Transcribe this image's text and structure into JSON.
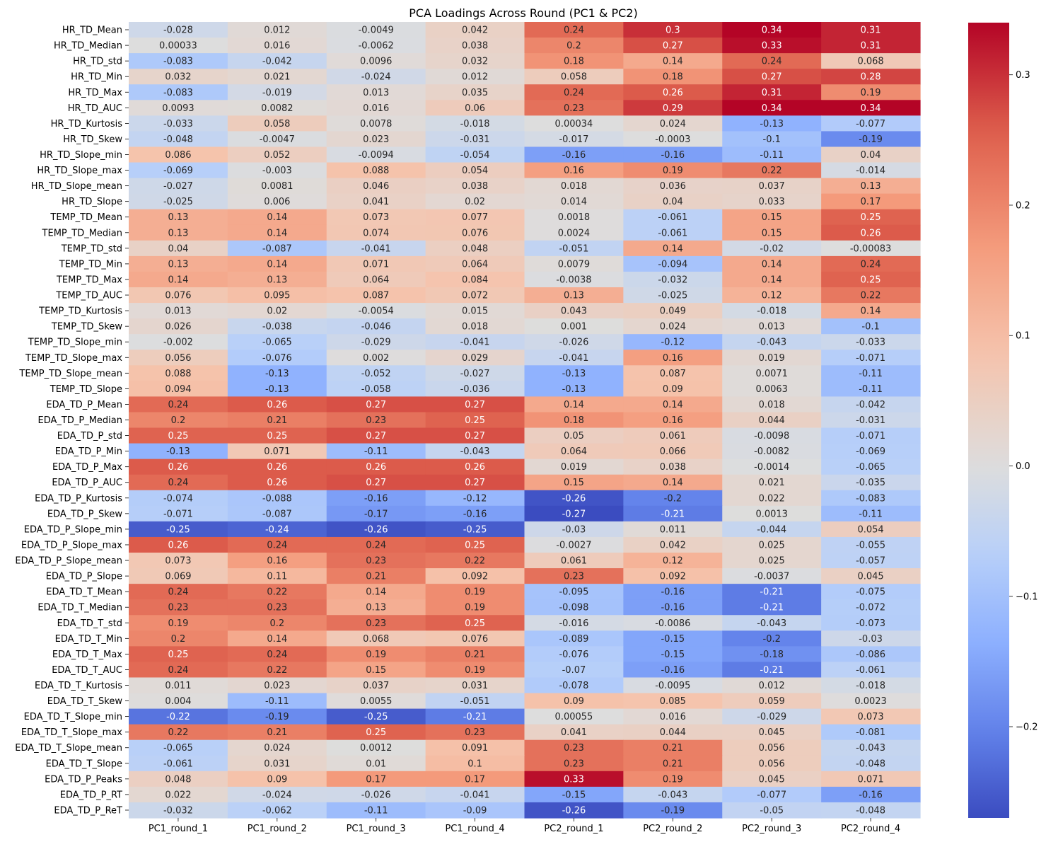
{
  "chart_data": {
    "type": "heatmap",
    "title": "PCA Loadings Across Round (PC1 & PC2)",
    "xlabel": "",
    "ylabel": "",
    "colormap": "coolwarm",
    "vmin": -0.27,
    "vmax": 0.34,
    "colorbar_ticks": [
      "0.3",
      "0.2",
      "0.1",
      "0.0",
      "−0.1",
      "−0.2"
    ],
    "colorbar_tick_values": [
      0.3,
      0.2,
      0.1,
      0.0,
      -0.1,
      -0.2
    ],
    "annotated": true,
    "columns": [
      "PC1_round_1",
      "PC1_round_2",
      "PC1_round_3",
      "PC1_round_4",
      "PC2_round_1",
      "PC2_round_2",
      "PC2_round_3",
      "PC2_round_4"
    ],
    "rows": [
      "HR_TD_Mean",
      "HR_TD_Median",
      "HR_TD_std",
      "HR_TD_Min",
      "HR_TD_Max",
      "HR_TD_AUC",
      "HR_TD_Kurtosis",
      "HR_TD_Skew",
      "HR_TD_Slope_min",
      "HR_TD_Slope_max",
      "HR_TD_Slope_mean",
      "HR_TD_Slope",
      "TEMP_TD_Mean",
      "TEMP_TD_Median",
      "TEMP_TD_std",
      "TEMP_TD_Min",
      "TEMP_TD_Max",
      "TEMP_TD_AUC",
      "TEMP_TD_Kurtosis",
      "TEMP_TD_Skew",
      "TEMP_TD_Slope_min",
      "TEMP_TD_Slope_max",
      "TEMP_TD_Slope_mean",
      "TEMP_TD_Slope",
      "EDA_TD_P_Mean",
      "EDA_TD_P_Median",
      "EDA_TD_P_std",
      "EDA_TD_P_Min",
      "EDA_TD_P_Max",
      "EDA_TD_P_AUC",
      "EDA_TD_P_Kurtosis",
      "EDA_TD_P_Skew",
      "EDA_TD_P_Slope_min",
      "EDA_TD_P_Slope_max",
      "EDA_TD_P_Slope_mean",
      "EDA_TD_P_Slope",
      "EDA_TD_T_Mean",
      "EDA_TD_T_Median",
      "EDA_TD_T_std",
      "EDA_TD_T_Min",
      "EDA_TD_T_Max",
      "EDA_TD_T_AUC",
      "EDA_TD_T_Kurtosis",
      "EDA_TD_T_Skew",
      "EDA_TD_T_Slope_min",
      "EDA_TD_T_Slope_max",
      "EDA_TD_T_Slope_mean",
      "EDA_TD_T_Slope",
      "EDA_TD_P_Peaks",
      "EDA_TD_P_RT",
      "EDA_TD_P_ReT"
    ],
    "values": [
      [
        "-0.028",
        "0.012",
        "-0.0049",
        "0.042",
        "0.24",
        "0.3",
        "0.34",
        "0.31"
      ],
      [
        "0.00033",
        "0.016",
        "-0.0062",
        "0.038",
        "0.2",
        "0.27",
        "0.33",
        "0.31"
      ],
      [
        "-0.083",
        "-0.042",
        "0.0096",
        "0.032",
        "0.18",
        "0.14",
        "0.24",
        "0.068"
      ],
      [
        "0.032",
        "0.021",
        "-0.024",
        "0.012",
        "0.058",
        "0.18",
        "0.27",
        "0.28"
      ],
      [
        "-0.083",
        "-0.019",
        "0.013",
        "0.035",
        "0.24",
        "0.26",
        "0.31",
        "0.19"
      ],
      [
        "0.0093",
        "0.0082",
        "0.016",
        "0.06",
        "0.23",
        "0.29",
        "0.34",
        "0.34"
      ],
      [
        "-0.033",
        "0.058",
        "0.0078",
        "-0.018",
        "0.00034",
        "0.024",
        "-0.13",
        "-0.077"
      ],
      [
        "-0.048",
        "-0.0047",
        "0.023",
        "-0.031",
        "-0.017",
        "-0.0003",
        "-0.1",
        "-0.19"
      ],
      [
        "0.086",
        "0.052",
        "-0.0094",
        "-0.054",
        "-0.16",
        "-0.16",
        "-0.11",
        "0.04"
      ],
      [
        "-0.069",
        "-0.003",
        "0.088",
        "0.054",
        "0.16",
        "0.19",
        "0.22",
        "-0.014"
      ],
      [
        "-0.027",
        "0.0081",
        "0.046",
        "0.038",
        "0.018",
        "0.036",
        "0.037",
        "0.13"
      ],
      [
        "-0.025",
        "0.006",
        "0.041",
        "0.02",
        "0.014",
        "0.04",
        "0.033",
        "0.17"
      ],
      [
        "0.13",
        "0.14",
        "0.073",
        "0.077",
        "0.0018",
        "-0.061",
        "0.15",
        "0.25"
      ],
      [
        "0.13",
        "0.14",
        "0.074",
        "0.076",
        "0.0024",
        "-0.061",
        "0.15",
        "0.26"
      ],
      [
        "0.04",
        "-0.087",
        "-0.041",
        "0.048",
        "-0.051",
        "0.14",
        "-0.02",
        "-0.00083"
      ],
      [
        "0.13",
        "0.14",
        "0.071",
        "0.064",
        "0.0079",
        "-0.094",
        "0.14",
        "0.24"
      ],
      [
        "0.14",
        "0.13",
        "0.064",
        "0.084",
        "-0.0038",
        "-0.032",
        "0.14",
        "0.25"
      ],
      [
        "0.076",
        "0.095",
        "0.087",
        "0.072",
        "0.13",
        "-0.025",
        "0.12",
        "0.22"
      ],
      [
        "0.013",
        "0.02",
        "-0.0054",
        "0.015",
        "0.043",
        "0.049",
        "-0.018",
        "0.14"
      ],
      [
        "0.026",
        "-0.038",
        "-0.046",
        "0.018",
        "0.001",
        "0.024",
        "0.013",
        "-0.1"
      ],
      [
        "-0.002",
        "-0.065",
        "-0.029",
        "-0.041",
        "-0.026",
        "-0.12",
        "-0.043",
        "-0.033"
      ],
      [
        "0.056",
        "-0.076",
        "0.002",
        "0.029",
        "-0.041",
        "0.16",
        "0.019",
        "-0.071"
      ],
      [
        "0.088",
        "-0.13",
        "-0.052",
        "-0.027",
        "-0.13",
        "0.087",
        "0.0071",
        "-0.11"
      ],
      [
        "0.094",
        "-0.13",
        "-0.058",
        "-0.036",
        "-0.13",
        "0.09",
        "0.0063",
        "-0.11"
      ],
      [
        "0.24",
        "0.26",
        "0.27",
        "0.27",
        "0.14",
        "0.14",
        "0.018",
        "-0.042"
      ],
      [
        "0.2",
        "0.21",
        "0.23",
        "0.25",
        "0.18",
        "0.16",
        "0.044",
        "-0.031"
      ],
      [
        "0.25",
        "0.25",
        "0.27",
        "0.27",
        "0.05",
        "0.061",
        "-0.0098",
        "-0.071"
      ],
      [
        "-0.13",
        "0.071",
        "-0.11",
        "-0.043",
        "0.064",
        "0.066",
        "-0.0082",
        "-0.069"
      ],
      [
        "0.26",
        "0.26",
        "0.26",
        "0.26",
        "0.019",
        "0.038",
        "-0.0014",
        "-0.065"
      ],
      [
        "0.24",
        "0.26",
        "0.27",
        "0.27",
        "0.15",
        "0.14",
        "0.021",
        "-0.035"
      ],
      [
        "-0.074",
        "-0.088",
        "-0.16",
        "-0.12",
        "-0.26",
        "-0.2",
        "0.022",
        "-0.083"
      ],
      [
        "-0.071",
        "-0.087",
        "-0.17",
        "-0.16",
        "-0.27",
        "-0.21",
        "0.0013",
        "-0.11"
      ],
      [
        "-0.25",
        "-0.24",
        "-0.26",
        "-0.25",
        "-0.03",
        "0.011",
        "-0.044",
        "0.054"
      ],
      [
        "0.26",
        "0.24",
        "0.24",
        "0.25",
        "-0.0027",
        "0.042",
        "0.025",
        "-0.055"
      ],
      [
        "0.073",
        "0.16",
        "0.23",
        "0.22",
        "0.061",
        "0.12",
        "0.025",
        "-0.057"
      ],
      [
        "0.069",
        "0.11",
        "0.21",
        "0.092",
        "0.23",
        "0.092",
        "-0.0037",
        "0.045"
      ],
      [
        "0.24",
        "0.22",
        "0.14",
        "0.19",
        "-0.095",
        "-0.16",
        "-0.21",
        "-0.075"
      ],
      [
        "0.23",
        "0.23",
        "0.13",
        "0.19",
        "-0.098",
        "-0.16",
        "-0.21",
        "-0.072"
      ],
      [
        "0.19",
        "0.2",
        "0.23",
        "0.25",
        "-0.016",
        "-0.0086",
        "-0.043",
        "-0.073"
      ],
      [
        "0.2",
        "0.14",
        "0.068",
        "0.076",
        "-0.089",
        "-0.15",
        "-0.2",
        "-0.03"
      ],
      [
        "0.25",
        "0.24",
        "0.19",
        "0.21",
        "-0.076",
        "-0.15",
        "-0.18",
        "-0.086"
      ],
      [
        "0.24",
        "0.22",
        "0.15",
        "0.19",
        "-0.07",
        "-0.16",
        "-0.21",
        "-0.061"
      ],
      [
        "0.011",
        "0.023",
        "0.037",
        "0.031",
        "-0.078",
        "-0.0095",
        "0.012",
        "-0.018"
      ],
      [
        "0.004",
        "-0.11",
        "0.0055",
        "-0.051",
        "0.09",
        "0.085",
        "0.059",
        "0.0023"
      ],
      [
        "-0.22",
        "-0.19",
        "-0.25",
        "-0.21",
        "0.00055",
        "0.016",
        "-0.029",
        "0.073"
      ],
      [
        "0.22",
        "0.21",
        "0.25",
        "0.23",
        "0.041",
        "0.044",
        "0.045",
        "-0.081"
      ],
      [
        "-0.065",
        "0.024",
        "0.0012",
        "0.091",
        "0.23",
        "0.21",
        "0.056",
        "-0.043"
      ],
      [
        "-0.061",
        "0.031",
        "0.01",
        "0.1",
        "0.23",
        "0.21",
        "0.056",
        "-0.048"
      ],
      [
        "0.048",
        "0.09",
        "0.17",
        "0.17",
        "0.33",
        "0.19",
        "0.045",
        "0.071"
      ],
      [
        "0.022",
        "-0.024",
        "-0.026",
        "-0.041",
        "-0.15",
        "-0.043",
        "-0.077",
        "-0.16"
      ],
      [
        "-0.032",
        "-0.062",
        "-0.11",
        "-0.09",
        "-0.26",
        "-0.19",
        "-0.05",
        "-0.048"
      ]
    ]
  }
}
